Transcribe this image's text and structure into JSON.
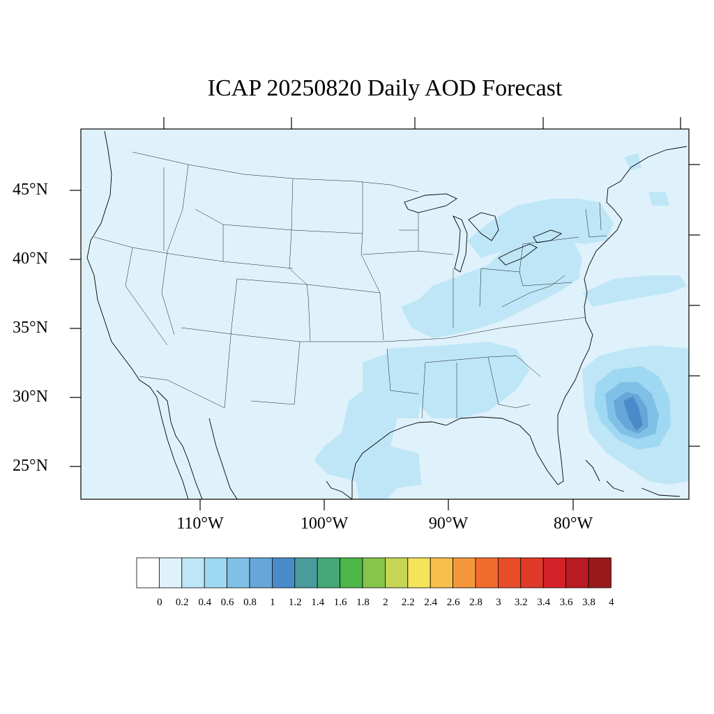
{
  "title": "ICAP 20250820 Daily AOD Forecast",
  "lat_labels": [
    "45°N",
    "40°N",
    "35°N",
    "30°N",
    "25°N"
  ],
  "lon_labels": [
    "110°W",
    "100°W",
    "90°W",
    "80°W"
  ],
  "colorbar": {
    "labels": [
      "0",
      "0.2",
      "0.4",
      "0.6",
      "0.8",
      "1",
      "1.2",
      "1.4",
      "1.6",
      "1.8",
      "2",
      "2.2",
      "2.4",
      "2.6",
      "2.8",
      "3",
      "3.2",
      "3.4",
      "3.6",
      "3.8",
      "4"
    ],
    "colors": [
      "#ffffff",
      "#dff2fb",
      "#bfe6f7",
      "#9fd8f2",
      "#80c0e6",
      "#66a6d9",
      "#4a8bc9",
      "#4a9c9c",
      "#46a878",
      "#4cb648",
      "#86c44c",
      "#c5d654",
      "#f5e45a",
      "#f6c04a",
      "#f5983c",
      "#f26c2c",
      "#e84e2a",
      "#e03a28",
      "#d42228",
      "#b81c22",
      "#981a1c"
    ]
  },
  "map": {
    "background_color": "#dff2fb",
    "aod_patches": [
      {
        "level": 0.2,
        "color": "#bfe6f7",
        "region": "Texas coast / Gulf"
      },
      {
        "level": 0.2,
        "color": "#bfe6f7",
        "region": "Southeast US"
      },
      {
        "level": 0.2,
        "color": "#bfe6f7",
        "region": "Ohio Valley / Great Lakes"
      },
      {
        "level": 0.2,
        "color": "#bfe6f7",
        "region": "Mid-Atlantic offshore"
      },
      {
        "level": 0.4,
        "color": "#9fd8f2",
        "region": "Atlantic plume"
      },
      {
        "level": 0.6,
        "color": "#80c0e6",
        "region": "Atlantic plume"
      },
      {
        "level": 0.8,
        "color": "#66a6d9",
        "region": "Atlantic plume core"
      },
      {
        "level": 1.0,
        "color": "#4a8bc9",
        "region": "Atlantic plume peak"
      }
    ]
  }
}
